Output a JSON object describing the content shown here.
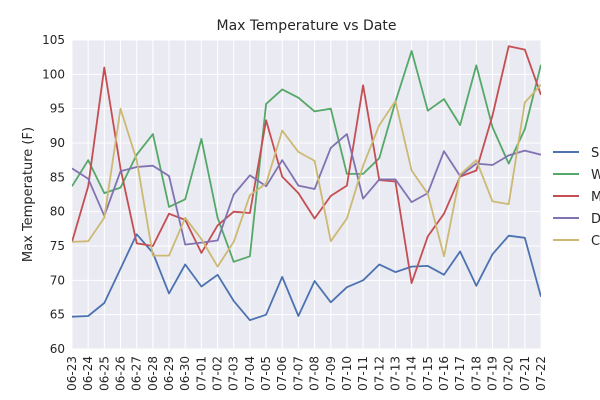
{
  "chart_data": {
    "type": "line",
    "title": "Max Temperature vs Date",
    "xlabel": "",
    "ylabel": "Max Temperature (F)",
    "ylim": [
      60,
      105
    ],
    "yticks": [
      60,
      65,
      70,
      75,
      80,
      85,
      90,
      95,
      100,
      105
    ],
    "grid": true,
    "legend_position": "right",
    "background": "#eaeaf2",
    "categories": [
      "06-23",
      "06-24",
      "06-25",
      "06-26",
      "06-27",
      "06-28",
      "06-29",
      "06-30",
      "07-01",
      "07-02",
      "07-03",
      "07-04",
      "07-05",
      "07-06",
      "07-07",
      "07-08",
      "07-09",
      "07-10",
      "07-11",
      "07-12",
      "07-13",
      "07-14",
      "07-15",
      "07-16",
      "07-17",
      "07-18",
      "07-19",
      "07-20",
      "07-21",
      "07-22"
    ],
    "series": [
      {
        "name": "S",
        "color": "#4c72b0",
        "values": [
          64.7,
          64.8,
          66.7,
          71.7,
          76.7,
          74.0,
          68.1,
          72.3,
          69.1,
          70.8,
          67.0,
          64.2,
          65.0,
          70.5,
          64.8,
          69.9,
          66.8,
          69.0,
          70.0,
          72.3,
          71.2,
          72.0,
          72.1,
          70.8,
          74.2,
          69.2,
          73.8,
          76.5,
          76.2,
          67.6
        ]
      },
      {
        "name": "W",
        "color": "#55a868",
        "values": [
          83.7,
          87.5,
          82.7,
          83.5,
          88.3,
          91.3,
          80.7,
          81.8,
          90.6,
          79.1,
          72.7,
          73.5,
          95.7,
          97.8,
          96.6,
          94.6,
          95.0,
          85.5,
          85.5,
          87.8,
          96.0,
          103.4,
          94.7,
          96.4,
          92.6,
          101.3,
          92.3,
          87.0,
          92.0,
          101.4
        ]
      },
      {
        "name": "M",
        "color": "#c44e52",
        "values": [
          75.6,
          83.7,
          101.0,
          86.3,
          75.4,
          75.0,
          79.7,
          78.8,
          74.0,
          78.0,
          80.0,
          79.8,
          93.3,
          85.1,
          82.7,
          79.0,
          82.3,
          83.8,
          98.4,
          84.6,
          84.4,
          69.6,
          76.4,
          79.7,
          85.1,
          86.0,
          94.0,
          104.1,
          103.6,
          97.0
        ]
      },
      {
        "name": "D",
        "color": "#8172b2",
        "values": [
          86.3,
          84.8,
          79.4,
          85.9,
          86.5,
          86.7,
          85.2,
          75.2,
          75.5,
          75.8,
          82.5,
          85.3,
          83.7,
          87.5,
          83.8,
          83.3,
          89.3,
          91.3,
          81.9,
          84.7,
          84.7,
          81.4,
          82.7,
          88.8,
          85.2,
          87.0,
          86.8,
          88.2,
          88.9,
          88.3
        ]
      },
      {
        "name": "C",
        "color": "#ccb974",
        "values": [
          75.6,
          75.7,
          79.1,
          95.0,
          87.5,
          73.6,
          73.6,
          79.1,
          76.0,
          72.0,
          75.6,
          82.4,
          84.1,
          91.8,
          88.7,
          87.4,
          75.7,
          79.0,
          86.7,
          92.6,
          96.1,
          86.0,
          82.6,
          73.5,
          85.4,
          87.5,
          81.5,
          81.1,
          95.9,
          98.5
        ]
      }
    ]
  }
}
